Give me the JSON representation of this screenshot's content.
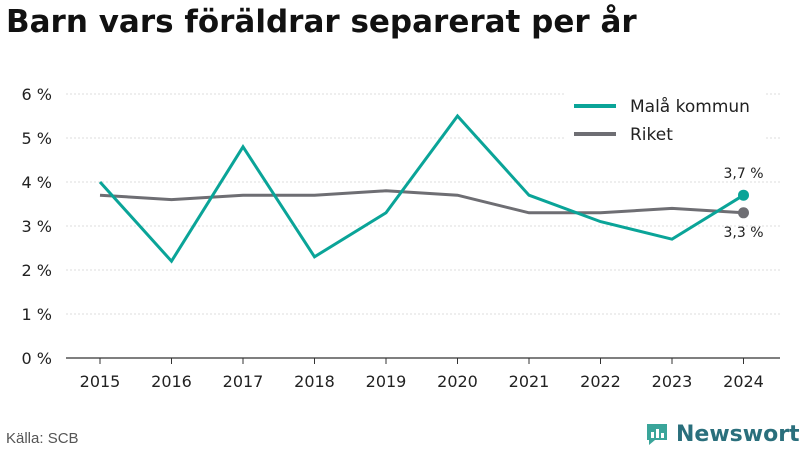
{
  "title": "Barn vars föräldrar separerat per år",
  "source": "Källa: SCB",
  "brand": {
    "name": "Newsworthy",
    "icon": "newsworthy-logo-icon"
  },
  "colors": {
    "primary": "#0aa498",
    "secondary": "#6e6e73",
    "grid": "#dddddd",
    "axis": "#333333"
  },
  "chart_data": {
    "type": "line",
    "title": "Barn vars föräldrar separerat per år",
    "xlabel": "",
    "ylabel": "",
    "x": [
      "2015",
      "2016",
      "2017",
      "2018",
      "2019",
      "2020",
      "2021",
      "2022",
      "2023",
      "2024"
    ],
    "ylim": [
      0,
      6
    ],
    "yticks": [
      "0 %",
      "1 %",
      "2 %",
      "3 %",
      "4 %",
      "5 %",
      "6 %"
    ],
    "grid": true,
    "legend": "top-right",
    "series": [
      {
        "name": "Malå kommun",
        "color": "#0aa498",
        "values": [
          4.0,
          2.2,
          4.8,
          2.3,
          3.3,
          5.5,
          3.7,
          3.1,
          2.7,
          3.7
        ],
        "end_label": "3,7 %"
      },
      {
        "name": "Riket",
        "color": "#6e6e73",
        "values": [
          3.7,
          3.6,
          3.7,
          3.7,
          3.8,
          3.7,
          3.3,
          3.3,
          3.4,
          3.3
        ],
        "end_label": "3,3 %"
      }
    ]
  }
}
